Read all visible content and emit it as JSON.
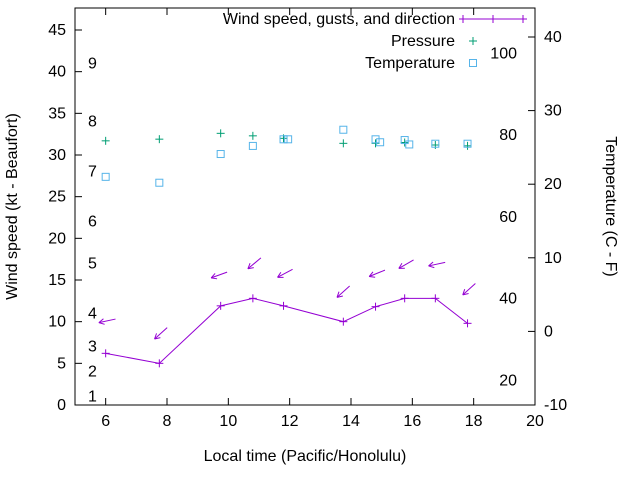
{
  "chart_data": {
    "type": "line",
    "title": "",
    "xlabel": "Local time (Pacific/Honolulu)",
    "ylabel_left": "Wind speed (kt - Beaufort)",
    "ylabel_right": "Temperature (C - F)",
    "x_range": [
      5,
      20
    ],
    "x_ticks": [
      6,
      8,
      10,
      12,
      14,
      16,
      18,
      20
    ],
    "left_axis": {
      "ticks": [
        0,
        5,
        10,
        15,
        20,
        25,
        30,
        35,
        40,
        45
      ],
      "range": [
        0,
        47.64
      ]
    },
    "beaufort_labels": [
      {
        "label": "1",
        "kt": 1
      },
      {
        "label": "2",
        "kt": 4
      },
      {
        "label": "3",
        "kt": 7
      },
      {
        "label": "4",
        "kt": 11
      },
      {
        "label": "5",
        "kt": 17
      },
      {
        "label": "6",
        "kt": 22
      },
      {
        "label": "7",
        "kt": 28
      },
      {
        "label": "8",
        "kt": 34
      },
      {
        "label": "9",
        "kt": 41
      }
    ],
    "right_axis_c": {
      "ticks": [
        -10,
        0,
        10,
        20,
        30,
        40
      ],
      "range": [
        -10,
        43.94
      ]
    },
    "fahrenheit_labels": [
      20,
      40,
      60,
      80,
      100
    ],
    "legend": [
      {
        "label": "Wind speed, gusts, and direction",
        "color": "#9400d3",
        "style": "linespoints-plus"
      },
      {
        "label": "Pressure",
        "color": "#009e73",
        "style": "points-plus"
      },
      {
        "label": "Temperature",
        "color": "#56b4e9",
        "style": "points-square"
      }
    ],
    "x": [
      6.0,
      7.75,
      9.75,
      10.8,
      11.8,
      13.75,
      14.8,
      15.75,
      16.75,
      17.8
    ],
    "series": [
      {
        "name": "wind_speed_kt",
        "values": [
          6.2,
          5.0,
          11.9,
          12.8,
          11.9,
          10.0,
          11.8,
          12.8,
          12.8,
          9.8
        ]
      },
      {
        "name": "pressure_plotted_left_axis_units",
        "values": [
          31.7,
          31.9,
          32.6,
          32.3,
          32.0,
          31.4,
          31.4,
          31.5,
          31.2,
          31.1
        ]
      },
      {
        "name": "temperature_c",
        "values": [
          21.0,
          20.2,
          24.1,
          25.2,
          26.1,
          27.4,
          26.1,
          26.0,
          25.5,
          25.5
        ]
      }
    ],
    "temperature_extra_c": [
      {
        "x": 11.95,
        "c": 26.1
      },
      {
        "x": 14.95,
        "c": 25.7
      },
      {
        "x": 15.9,
        "c": 25.4
      }
    ],
    "wind_arrows": [
      {
        "x": 6.05,
        "kt": 10.1,
        "angle": 168
      },
      {
        "x": 7.8,
        "kt": 8.6,
        "angle": 138
      },
      {
        "x": 9.7,
        "kt": 15.6,
        "angle": 160
      },
      {
        "x": 10.85,
        "kt": 17.0,
        "angle": 140
      },
      {
        "x": 11.85,
        "kt": 15.8,
        "angle": 152
      },
      {
        "x": 13.75,
        "kt": 13.6,
        "angle": 138
      },
      {
        "x": 14.85,
        "kt": 15.8,
        "angle": 158
      },
      {
        "x": 15.8,
        "kt": 16.9,
        "angle": 150
      },
      {
        "x": 16.8,
        "kt": 16.9,
        "angle": 168
      },
      {
        "x": 17.85,
        "kt": 13.9,
        "angle": 138
      }
    ],
    "background": "#ffffff",
    "axis_color": "#000000"
  }
}
